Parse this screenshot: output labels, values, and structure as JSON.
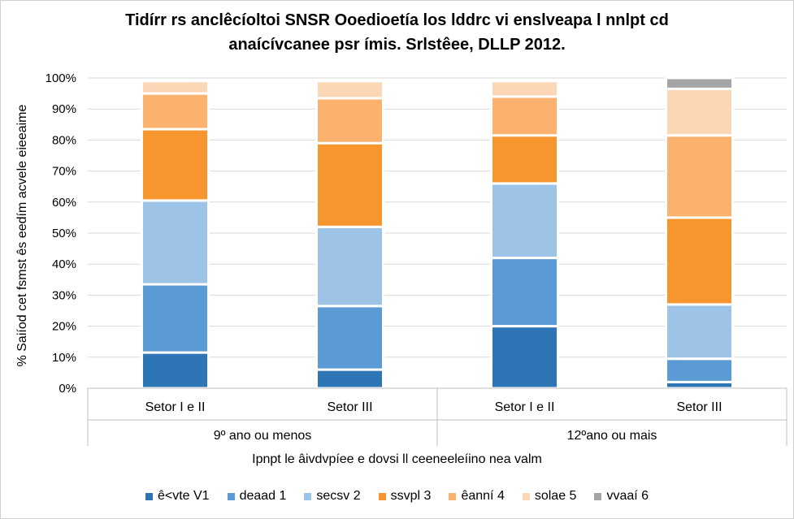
{
  "chart_data": {
    "type": "bar",
    "stacked": true,
    "normalized": true,
    "title_lines": [
      "Tidírr rs anclêcíoltoi SNSR Ooedioetía los lddrc vi enslveapa l nnlpt cd",
      "anaícívcanee psr ímis.  Srlstêee, DLLP 2012."
    ],
    "ylabel": "% Saiíod cet fsmst ês eedím acvele eieeaime",
    "xlabel": "Ipnpt le âivdvpíee e dovsi ll ceeneeleíino nea valm",
    "ylim": [
      0,
      100
    ],
    "yticks": [
      "0%",
      "10%",
      "20%",
      "30%",
      "40%",
      "50%",
      "60%",
      "70%",
      "80%",
      "90%",
      "100%"
    ],
    "grid": true,
    "legend_position": "bottom",
    "categories": [
      "Setor I e II",
      "Setor III",
      "Setor I e II",
      "Setor III"
    ],
    "groups": [
      {
        "label": "9º ano ou menos",
        "categories": [
          "Setor I e II",
          "Setor III"
        ]
      },
      {
        "label": "12ºano ou mais",
        "categories": [
          "Setor I e II",
          "Setor III"
        ]
      }
    ],
    "series": [
      {
        "name": "ê<vte V1",
        "color": "#2e75b6",
        "values": [
          11.5,
          6,
          20,
          2
        ]
      },
      {
        "name": "deaad 1",
        "color": "#5b9bd5",
        "values": [
          22,
          20.5,
          22,
          7.5
        ]
      },
      {
        "name": "secsv 2",
        "color": "#9dc3e6",
        "values": [
          27,
          25.5,
          24,
          17.5
        ]
      },
      {
        "name": "ssvpl 3",
        "color": "#f7962e",
        "values": [
          23,
          27,
          15.5,
          28
        ]
      },
      {
        "name": "êanní 4",
        "color": "#fbb26f",
        "values": [
          11.5,
          14.5,
          12.5,
          26.5
        ]
      },
      {
        "name": "solae 5",
        "color": "#fcd7b6",
        "values": [
          4,
          5.5,
          5,
          15
        ]
      },
      {
        "name": "vvaaí 6",
        "color": "#a5a5a5",
        "values": [
          0,
          0,
          0,
          3.5
        ]
      }
    ]
  }
}
